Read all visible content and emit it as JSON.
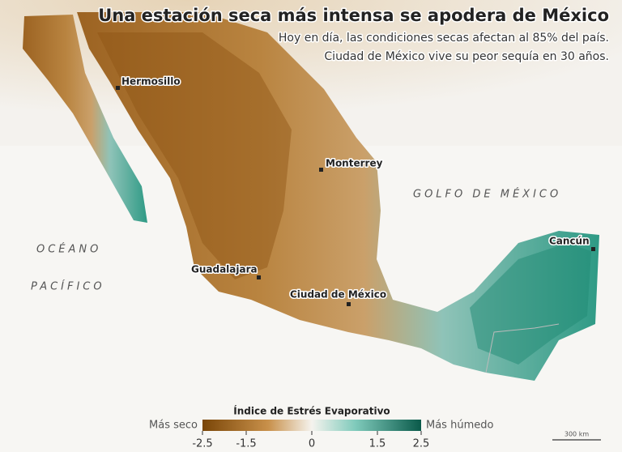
{
  "header": {
    "title": "Una estación seca más intensa se apodera de México",
    "subtitle_lines": [
      "Hoy en día, las condiciones secas afectan al 85% del país.",
      "Ciudad de México vive su peor sequía en 30 años."
    ]
  },
  "places": [
    {
      "label": "Hermosillo"
    },
    {
      "label": "Monterrey"
    },
    {
      "label": "Guadalajara"
    },
    {
      "label": "Ciudad de México"
    },
    {
      "label": "Cancún"
    }
  ],
  "water_labels": [
    "GOLFO DE MÉXICO",
    "OCÉANO",
    "PACÍFICO"
  ],
  "legend": {
    "title": "Índice de Estrés Evaporativo",
    "low_label": "Más seco",
    "high_label": "Más húmedo",
    "range": [
      -2.5,
      2.5
    ],
    "ticks": [
      -2.5,
      -1.5,
      0,
      1.5,
      2.5
    ]
  },
  "scale_bar": "300 km"
}
